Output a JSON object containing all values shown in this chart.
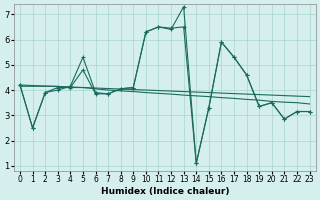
{
  "xlabel": "Humidex (Indice chaleur)",
  "ylabel": "",
  "background_color": "#d4efed",
  "grid_color": "#aad4cf",
  "line_color": "#1a6b5e",
  "xlim": [
    -0.5,
    23.5
  ],
  "ylim": [
    0.8,
    7.4
  ],
  "xticks": [
    0,
    1,
    2,
    3,
    4,
    5,
    6,
    7,
    8,
    9,
    10,
    11,
    12,
    13,
    14,
    15,
    16,
    17,
    18,
    19,
    20,
    21,
    22,
    23
  ],
  "yticks": [
    1,
    2,
    3,
    4,
    5,
    6,
    7
  ],
  "series1": [
    4.2,
    2.5,
    3.9,
    4.1,
    4.1,
    4.8,
    3.85,
    3.85,
    4.05,
    4.1,
    6.3,
    6.5,
    6.45,
    6.5,
    1.1,
    3.3,
    5.9,
    5.3,
    4.6,
    3.35,
    3.5,
    2.85,
    3.15,
    3.15
  ],
  "series2": [
    4.2,
    2.5,
    3.9,
    4.0,
    4.15,
    5.3,
    3.9,
    3.85,
    4.05,
    4.1,
    6.3,
    6.5,
    6.4,
    7.3,
    1.1,
    3.3,
    5.9,
    5.3,
    4.6,
    3.35,
    3.5,
    2.85,
    3.15,
    3.15
  ],
  "series3": [
    4.15,
    4.15,
    4.15,
    4.15,
    4.1,
    4.1,
    4.05,
    4.0,
    3.97,
    3.94,
    3.9,
    3.87,
    3.84,
    3.8,
    3.77,
    3.74,
    3.7,
    3.67,
    3.63,
    3.6,
    3.55,
    3.52,
    3.5,
    3.45
  ],
  "series4": [
    4.2,
    4.18,
    4.16,
    4.14,
    4.12,
    4.1,
    4.08,
    4.06,
    4.04,
    4.02,
    4.0,
    3.98,
    3.96,
    3.94,
    3.92,
    3.9,
    3.88,
    3.86,
    3.84,
    3.82,
    3.8,
    3.78,
    3.76,
    3.74
  ]
}
